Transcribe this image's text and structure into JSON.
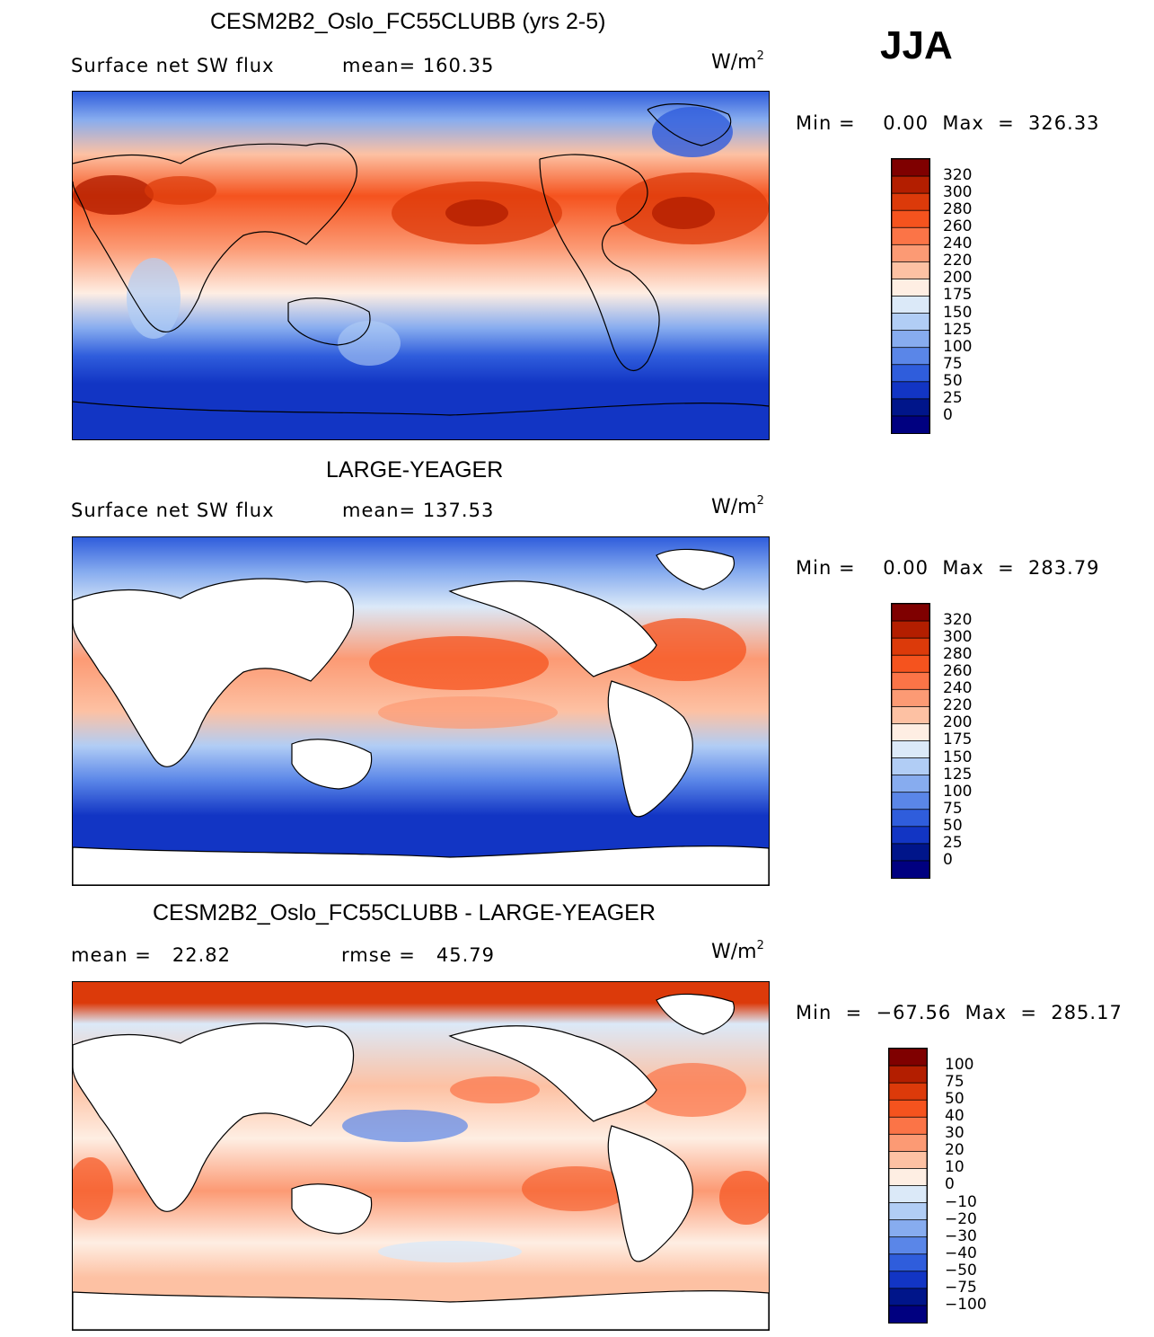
{
  "season": "JJA",
  "unit_label": "W/m",
  "unit_sup": "2",
  "panels": [
    {
      "title": "CESM2B2_Oslo_FC55CLUBB (yrs 2-5)",
      "variable": "Surface net SW flux",
      "stat": "mean= 160.35",
      "minmax": "Min =    0.00  Max  =  326.33",
      "levels": [
        "320",
        "300",
        "280",
        "260",
        "240",
        "220",
        "200",
        "175",
        "150",
        "125",
        "100",
        "75",
        "50",
        "25",
        "0"
      ]
    },
    {
      "title": "LARGE-YEAGER",
      "variable": "Surface net SW flux",
      "stat": "mean= 137.53",
      "minmax": "Min =    0.00  Max  =  283.79",
      "levels": [
        "320",
        "300",
        "280",
        "260",
        "240",
        "220",
        "200",
        "175",
        "150",
        "125",
        "100",
        "75",
        "50",
        "25",
        "0"
      ]
    },
    {
      "title": "CESM2B2_Oslo_FC55CLUBB - LARGE-YEAGER",
      "variable": "mean =   22.82",
      "stat": "rmse =   45.79",
      "minmax": "Min  =  −67.56  Max  =  285.17",
      "levels": [
        "100",
        "75",
        "50",
        "40",
        "30",
        "20",
        "10",
        "0",
        "−10",
        "−20",
        "−30",
        "−40",
        "−50",
        "−75",
        "−100"
      ]
    }
  ],
  "colors": {
    "abs_scale": [
      "#7f0000",
      "#b31e00",
      "#dc3a0a",
      "#f5531e",
      "#fb7447",
      "#fc9a74",
      "#fdc1a3",
      "#feeee3",
      "#dbe9f8",
      "#b1cdf5",
      "#87acef",
      "#5a86e8",
      "#2f5ddc",
      "#1235c4",
      "#00158a",
      "#000080"
    ],
    "diff_scale": [
      "#7f0000",
      "#b31e00",
      "#dc3a0a",
      "#f5531e",
      "#fb7447",
      "#fc9a74",
      "#fdc1a3",
      "#feeee3",
      "#dbe9f8",
      "#b1cdf5",
      "#87acef",
      "#5a86e8",
      "#2f5ddc",
      "#1235c4",
      "#00158a",
      "#000080"
    ],
    "land_mask": "#ffffff"
  },
  "chart_data": [
    {
      "type": "heatmap",
      "title": "CESM2B2_Oslo_FC55CLUBB (yrs 2-5)",
      "variable": "Surface net SW flux",
      "units": "W/m2",
      "mean": 160.35,
      "min": 0.0,
      "max": 326.33,
      "levels": [
        0,
        25,
        50,
        75,
        100,
        125,
        150,
        175,
        200,
        220,
        240,
        260,
        280,
        300,
        320
      ]
    },
    {
      "type": "heatmap",
      "title": "LARGE-YEAGER",
      "variable": "Surface net SW flux",
      "units": "W/m2",
      "mean": 137.53,
      "min": 0.0,
      "max": 283.79,
      "levels": [
        0,
        25,
        50,
        75,
        100,
        125,
        150,
        175,
        200,
        220,
        240,
        260,
        280,
        300,
        320
      ]
    },
    {
      "type": "heatmap",
      "title": "CESM2B2_Oslo_FC55CLUBB - LARGE-YEAGER",
      "units": "W/m2",
      "mean": 22.82,
      "rmse": 45.79,
      "min": -67.56,
      "max": 285.17,
      "levels": [
        -100,
        -75,
        -50,
        -40,
        -30,
        -20,
        -10,
        0,
        10,
        20,
        30,
        40,
        50,
        75,
        100
      ]
    }
  ]
}
